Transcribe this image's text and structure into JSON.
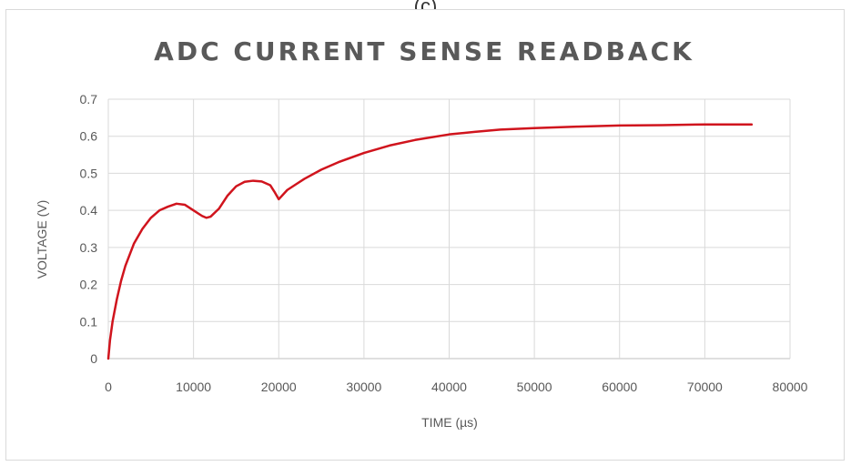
{
  "figure_label": "(c)",
  "chart_data": {
    "type": "line",
    "title": "ADC CURRENT SENSE READBACK",
    "xlabel": "TIME (µs)",
    "ylabel": "VOLTAGE (V)",
    "xlim": [
      0,
      80000
    ],
    "ylim": [
      0,
      0.7
    ],
    "x_ticks": [
      0,
      10000,
      20000,
      30000,
      40000,
      50000,
      60000,
      70000,
      80000
    ],
    "x_tick_labels": [
      "0",
      "10000",
      "20000",
      "30000",
      "40000",
      "50000",
      "60000",
      "70000",
      "80000"
    ],
    "y_ticks": [
      0,
      0.1,
      0.2,
      0.3,
      0.4,
      0.5,
      0.6,
      0.7
    ],
    "y_tick_labels": [
      "0",
      "0.1",
      "0.2",
      "0.3",
      "0.4",
      "0.5",
      "0.6",
      "0.7"
    ],
    "grid": true,
    "legend": "none",
    "series": [
      {
        "color": "#d0141d",
        "x": [
          0,
          200,
          500,
          1000,
          1500,
          2000,
          3000,
          4000,
          5000,
          6000,
          7000,
          8000,
          9000,
          10000,
          11000,
          11500,
          12000,
          13000,
          14000,
          15000,
          16000,
          17000,
          18000,
          19000,
          19500,
          20000,
          21000,
          22000,
          23000,
          25000,
          27000,
          30000,
          33000,
          36000,
          40000,
          43000,
          46000,
          50000,
          55000,
          60000,
          65000,
          70000,
          75500
        ],
        "y": [
          0,
          0.05,
          0.1,
          0.16,
          0.21,
          0.25,
          0.31,
          0.35,
          0.38,
          0.4,
          0.41,
          0.418,
          0.415,
          0.4,
          0.385,
          0.38,
          0.383,
          0.405,
          0.44,
          0.465,
          0.477,
          0.48,
          0.478,
          0.468,
          0.45,
          0.43,
          0.455,
          0.47,
          0.485,
          0.51,
          0.53,
          0.555,
          0.575,
          0.59,
          0.605,
          0.612,
          0.618,
          0.622,
          0.626,
          0.629,
          0.63,
          0.632,
          0.632
        ]
      }
    ]
  }
}
